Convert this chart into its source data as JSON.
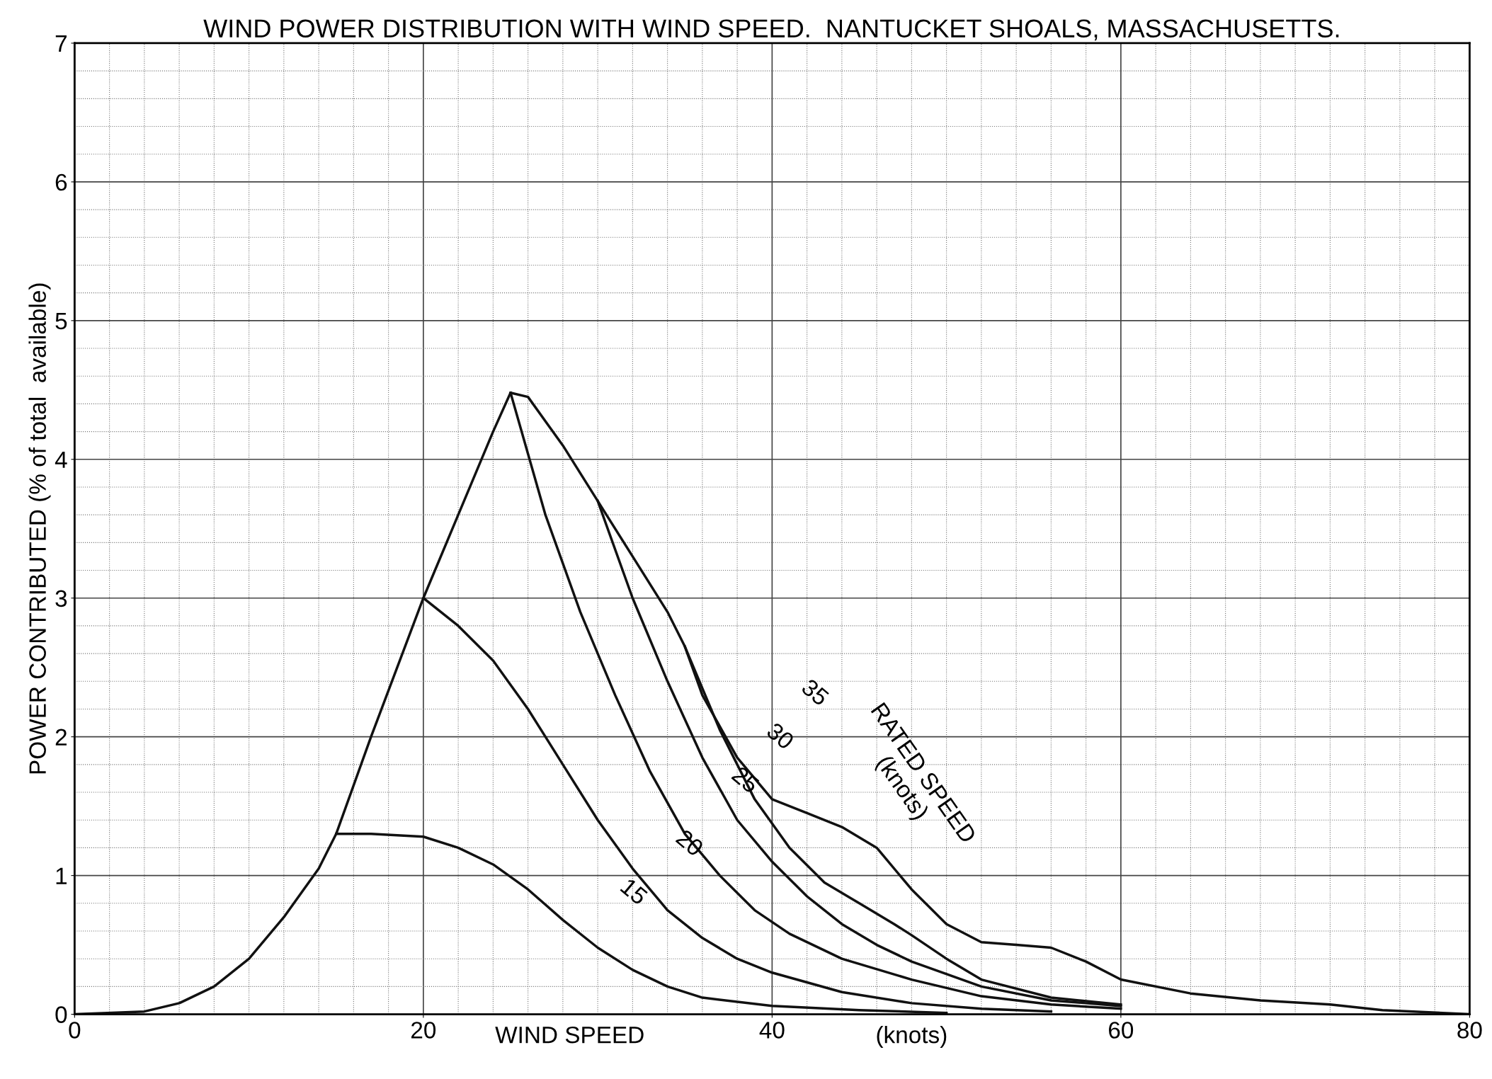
{
  "chart_data": {
    "type": "line",
    "title": "WIND POWER DISTRIBUTION WITH WIND SPEED.  NANTUCKET SHOALS, MASSACHUSETTS.",
    "xlabel": "WIND SPEED",
    "ylabel": "POWER CONTRIBUTED (% of total  available)",
    "series": [
      {
        "color": "#111111",
        "x": [
          0,
          4,
          6,
          8,
          10,
          12,
          14,
          15,
          17,
          20,
          22,
          24,
          25,
          26,
          28,
          30,
          32,
          34,
          35,
          36,
          38,
          40,
          42,
          44,
          46,
          48,
          50,
          52,
          54,
          56,
          58,
          60,
          64,
          68,
          72,
          75,
          80
        ],
        "values": [
          0,
          0.02,
          0.08,
          0.2,
          0.4,
          0.7,
          1.05,
          1.3,
          2.0,
          3.0,
          3.6,
          4.2,
          4.48,
          4.45,
          4.1,
          3.7,
          3.3,
          2.9,
          2.65,
          2.3,
          1.85,
          1.55,
          1.45,
          1.35,
          1.2,
          0.9,
          0.65,
          0.52,
          0.5,
          0.48,
          0.38,
          0.25,
          0.15,
          0.1,
          0.07,
          0.03,
          0
        ]
      },
      {
        "color": "#111111",
        "x": [
          15,
          17,
          20,
          22,
          24,
          26,
          28,
          30,
          32,
          34,
          36,
          40,
          45,
          50
        ],
        "values": [
          1.3,
          1.3,
          1.28,
          1.2,
          1.08,
          0.9,
          0.68,
          0.48,
          0.32,
          0.2,
          0.12,
          0.06,
          0.03,
          0.01
        ]
      },
      {
        "color": "#111111",
        "x": [
          20,
          22,
          24,
          26,
          28,
          30,
          32,
          34,
          36,
          38,
          40,
          44,
          48,
          52,
          56
        ],
        "values": [
          3.0,
          2.8,
          2.55,
          2.2,
          1.8,
          1.4,
          1.05,
          0.75,
          0.55,
          0.4,
          0.3,
          0.16,
          0.08,
          0.04,
          0.02
        ]
      },
      {
        "color": "#111111",
        "x": [
          25,
          27,
          29,
          31,
          33,
          35,
          37,
          39,
          41,
          44,
          48,
          52,
          56,
          60
        ],
        "values": [
          4.48,
          3.6,
          2.9,
          2.3,
          1.75,
          1.3,
          1.0,
          0.75,
          0.58,
          0.4,
          0.25,
          0.13,
          0.07,
          0.04
        ]
      },
      {
        "color": "#111111",
        "x": [
          30,
          32,
          34,
          36,
          38,
          40,
          42,
          44,
          46,
          48,
          52,
          56,
          60
        ],
        "values": [
          3.7,
          3.0,
          2.4,
          1.85,
          1.4,
          1.1,
          0.85,
          0.65,
          0.5,
          0.38,
          0.2,
          0.1,
          0.06
        ]
      },
      {
        "color": "#111111",
        "x": [
          35,
          37,
          39,
          41,
          43,
          45,
          47,
          48,
          50,
          52,
          56,
          60
        ],
        "values": [
          2.65,
          2.05,
          1.55,
          1.2,
          0.95,
          0.8,
          0.65,
          0.57,
          0.4,
          0.25,
          0.12,
          0.07
        ]
      }
    ],
    "annotations": [
      "15",
      "20",
      "25",
      "30",
      "35",
      "RATED SPEED\n(knots)",
      "(knots)"
    ],
    "xlim": [
      0,
      80
    ],
    "ylim": [
      0,
      7
    ],
    "xticks": [
      0,
      20,
      40,
      60,
      80
    ],
    "yticks": [
      0,
      1,
      2,
      3,
      4,
      5,
      6,
      7
    ],
    "grid": true,
    "line_style": "solid",
    "marker": "none"
  }
}
